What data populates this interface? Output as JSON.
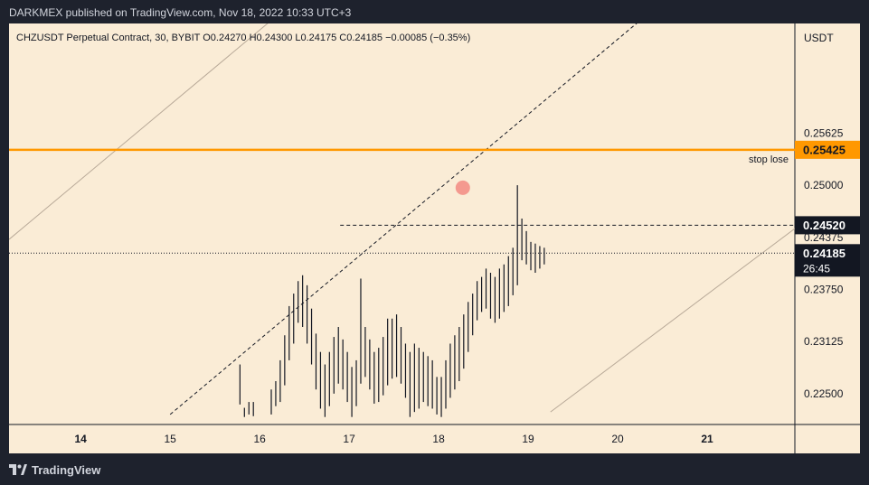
{
  "publisher": "DARKMEX published on TradingView.com, Nov 18, 2022 10:33 UTC+3",
  "footer": {
    "brand": "TradingView",
    "icon": "tradingview-logo-icon"
  },
  "colors": {
    "background": "#faecd6",
    "candles": "#131722",
    "stop_line": "#ff9800",
    "stop_label_bg": "#ff9800",
    "level_label_bg": "#131722",
    "channel": "#b8a998",
    "marker": "#f28b82",
    "axis_text": "#131722"
  },
  "chart_data": {
    "type": "bar",
    "symbol_line": "CHZUSDT Perpetual Contract, 30, BYBIT  O0.24270  H0.24300  L0.24175  C0.24185  −0.00085 (−0.35%)",
    "y_unit": "USDT",
    "x_ticks": [
      "14",
      "15",
      "16",
      "17",
      "18",
      "19",
      "20",
      "21"
    ],
    "x_tick_values": [
      14,
      15,
      16,
      17,
      18,
      19,
      20,
      21
    ],
    "x_range": [
      13.2,
      21.98
    ],
    "y_ticks": [
      "0.25625",
      "0.25000",
      "0.24375",
      "0.23750",
      "0.23125",
      "0.22500"
    ],
    "y_tick_values": [
      0.25625,
      0.25,
      0.24375,
      0.2375,
      0.23125,
      0.225
    ],
    "y_range": [
      0.2213,
      0.2694
    ],
    "stop_level": {
      "price": 0.25425,
      "label": "0.25425",
      "annotation": "stop lose"
    },
    "dashed_level": {
      "price": 0.2452,
      "label": "0.24520",
      "x_start": 16.9
    },
    "last_price": {
      "price": 0.24185,
      "label": "0.24185",
      "countdown": "26:45"
    },
    "channel_upper": [
      [
        13.2,
        0.2435
      ],
      [
        16.3,
        0.2713
      ]
    ],
    "channel_lower": [
      [
        19.25,
        0.2228
      ],
      [
        21.98,
        0.2448
      ]
    ],
    "dashed_trendline": [
      [
        15.0,
        0.2225
      ],
      [
        21.0,
        0.2765
      ]
    ],
    "high_marker": {
      "x": 18.27,
      "price": 0.2497
    },
    "bars": [
      [
        15.78,
        0.2237,
        0.2285
      ],
      [
        15.83,
        0.2222,
        0.2233
      ],
      [
        15.88,
        0.2225,
        0.224
      ],
      [
        15.93,
        0.2223,
        0.224
      ],
      [
        16.13,
        0.2225,
        0.2255
      ],
      [
        16.18,
        0.2235,
        0.2265
      ],
      [
        16.23,
        0.224,
        0.229
      ],
      [
        16.28,
        0.226,
        0.232
      ],
      [
        16.33,
        0.229,
        0.2355
      ],
      [
        16.38,
        0.231,
        0.237
      ],
      [
        16.43,
        0.2335,
        0.2385
      ],
      [
        16.48,
        0.233,
        0.2392
      ],
      [
        16.53,
        0.231,
        0.238
      ],
      [
        16.58,
        0.2285,
        0.2352
      ],
      [
        16.63,
        0.2255,
        0.2322
      ],
      [
        16.68,
        0.2232,
        0.23
      ],
      [
        16.73,
        0.2222,
        0.2285
      ],
      [
        16.78,
        0.2235,
        0.23
      ],
      [
        16.83,
        0.225,
        0.2318
      ],
      [
        16.88,
        0.2262,
        0.233
      ],
      [
        16.93,
        0.2255,
        0.2315
      ],
      [
        16.98,
        0.224,
        0.23
      ],
      [
        17.03,
        0.2222,
        0.2282
      ],
      [
        17.08,
        0.2235,
        0.229
      ],
      [
        17.13,
        0.2262,
        0.2388
      ],
      [
        17.18,
        0.227,
        0.233
      ],
      [
        17.23,
        0.2255,
        0.2315
      ],
      [
        17.28,
        0.2238,
        0.23
      ],
      [
        17.33,
        0.224,
        0.2305
      ],
      [
        17.38,
        0.2248,
        0.2318
      ],
      [
        17.43,
        0.226,
        0.234
      ],
      [
        17.48,
        0.2268,
        0.234
      ],
      [
        17.53,
        0.227,
        0.2345
      ],
      [
        17.58,
        0.2262,
        0.233
      ],
      [
        17.63,
        0.2245,
        0.231
      ],
      [
        17.68,
        0.2222,
        0.23
      ],
      [
        17.73,
        0.2228,
        0.231
      ],
      [
        17.78,
        0.2232,
        0.2305
      ],
      [
        17.83,
        0.224,
        0.23
      ],
      [
        17.88,
        0.2235,
        0.2295
      ],
      [
        17.93,
        0.2232,
        0.229
      ],
      [
        17.98,
        0.2225,
        0.227
      ],
      [
        18.03,
        0.2222,
        0.227
      ],
      [
        18.08,
        0.2232,
        0.229
      ],
      [
        18.13,
        0.2245,
        0.231
      ],
      [
        18.18,
        0.2255,
        0.232
      ],
      [
        18.23,
        0.2265,
        0.233
      ],
      [
        18.28,
        0.228,
        0.2345
      ],
      [
        18.33,
        0.23,
        0.236
      ],
      [
        18.38,
        0.232,
        0.237
      ],
      [
        18.43,
        0.2338,
        0.2385
      ],
      [
        18.48,
        0.2348,
        0.239
      ],
      [
        18.53,
        0.2352,
        0.24
      ],
      [
        18.58,
        0.234,
        0.2395
      ],
      [
        18.63,
        0.2335,
        0.239
      ],
      [
        18.68,
        0.234,
        0.24
      ],
      [
        18.73,
        0.2348,
        0.2405
      ],
      [
        18.78,
        0.2355,
        0.2415
      ],
      [
        18.83,
        0.2368,
        0.2425
      ],
      [
        18.88,
        0.238,
        0.25
      ],
      [
        18.93,
        0.241,
        0.246
      ],
      [
        18.98,
        0.2405,
        0.2445
      ],
      [
        19.03,
        0.2398,
        0.2432
      ],
      [
        19.08,
        0.2395,
        0.243
      ],
      [
        19.13,
        0.24,
        0.2427
      ],
      [
        19.18,
        0.2405,
        0.2425
      ]
    ]
  }
}
